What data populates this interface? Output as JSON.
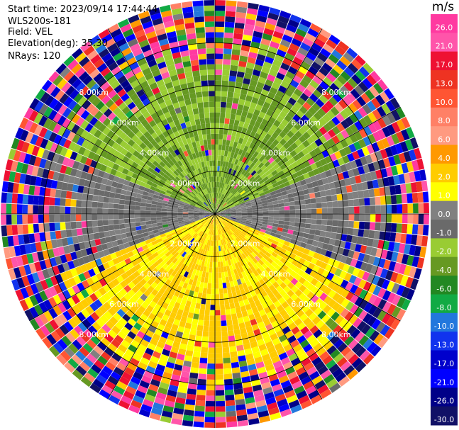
{
  "info": {
    "start_time": "Start time: 2023/09/14 17:44:44",
    "site": "WLS200s-181",
    "field": "Field: VEL",
    "elevation": "Elevation(deg): 35.30",
    "nrays": "NRays: 120"
  },
  "chart_data": {
    "type": "heatmap",
    "projection": "polar-ppi",
    "rays": 120,
    "range_ring_labels": [
      "2.00km",
      "4.00km",
      "6.00km",
      "8.00km"
    ],
    "colorbar": {
      "title": "m/s",
      "tick_labels": [
        "26.0",
        "21.0",
        "17.0",
        "13.0",
        "10.0",
        "8.0",
        "6.0",
        "4.0",
        "2.0",
        "1.0",
        "0.0",
        "-1.0",
        "-2.0",
        "-4.0",
        "-6.0",
        "-8.0",
        "-10.0",
        "-13.0",
        "-17.0",
        "-21.0",
        "-26.0",
        "-30.0"
      ],
      "bins": [
        {
          "lo": 26,
          "hi": 30,
          "color": "#ff3aa0"
        },
        {
          "lo": 21,
          "hi": 26,
          "color": "#ff55aa"
        },
        {
          "lo": 17,
          "hi": 21,
          "color": "#ee1133"
        },
        {
          "lo": 13,
          "hi": 17,
          "color": "#ee3322"
        },
        {
          "lo": 10,
          "hi": 13,
          "color": "#ff5533"
        },
        {
          "lo": 8,
          "hi": 10,
          "color": "#ff8066"
        },
        {
          "lo": 6,
          "hi": 8,
          "color": "#ff9a80"
        },
        {
          "lo": 4,
          "hi": 6,
          "color": "#ff9900"
        },
        {
          "lo": 2,
          "hi": 4,
          "color": "#ffcc00"
        },
        {
          "lo": 1,
          "hi": 2,
          "color": "#ffff00"
        },
        {
          "lo": 0,
          "hi": 1,
          "color": "#808080"
        },
        {
          "lo": -1,
          "hi": 0,
          "color": "#6a6a6a"
        },
        {
          "lo": -2,
          "hi": -1,
          "color": "#99cc33"
        },
        {
          "lo": -4,
          "hi": -2,
          "color": "#669922"
        },
        {
          "lo": -6,
          "hi": -4,
          "color": "#228822"
        },
        {
          "lo": -8,
          "hi": -6,
          "color": "#11aa44"
        },
        {
          "lo": -10,
          "hi": -8,
          "color": "#2277dd"
        },
        {
          "lo": -13,
          "hi": -10,
          "color": "#1133ee"
        },
        {
          "lo": -17,
          "hi": -13,
          "color": "#0000cc"
        },
        {
          "lo": -21,
          "hi": -17,
          "color": "#0000ff"
        },
        {
          "lo": -26,
          "hi": -21,
          "color": "#000088"
        },
        {
          "lo": -30,
          "hi": -26,
          "color": "#111166"
        }
      ]
    },
    "velocity_pattern": {
      "north_sector": "-2.0 to -1.0 (green)",
      "south_sector": "1.0 to 4.0 (yellow)",
      "east_west_sectors": "0.0 (gray)",
      "outer_ranges": "noise across full color scale"
    }
  }
}
